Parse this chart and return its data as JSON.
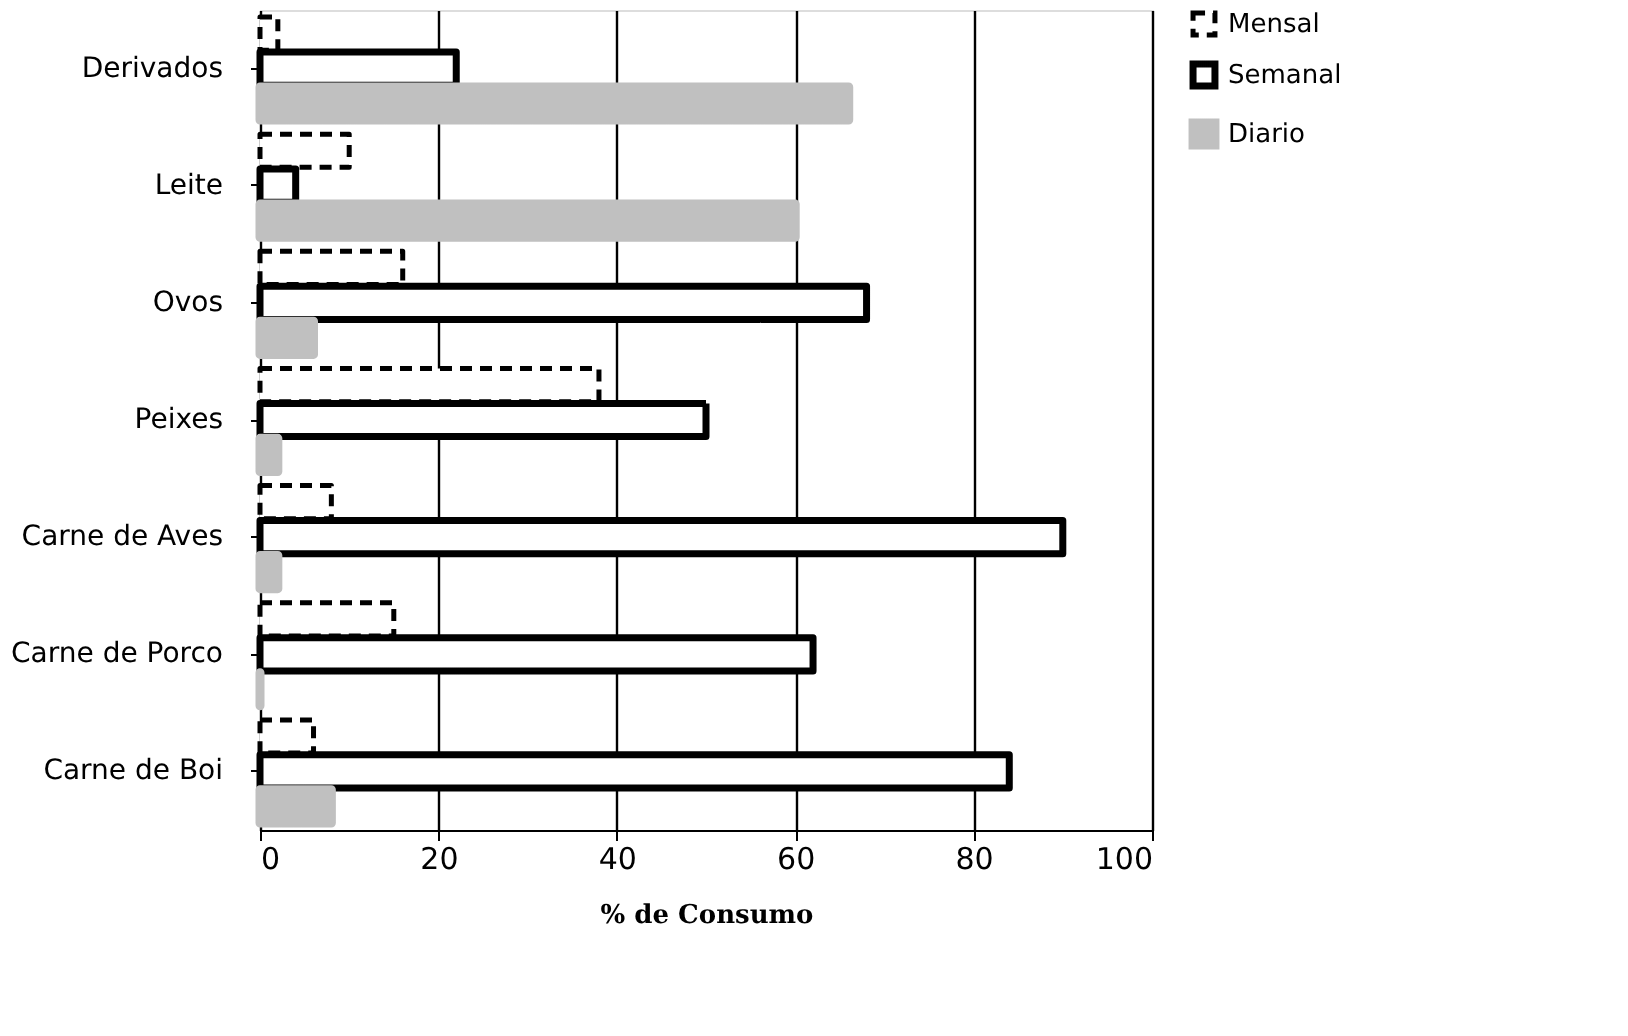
{
  "chart_data": {
    "type": "bar",
    "orientation": "horizontal",
    "xlabel": "% de Consumo",
    "categories": [
      "Derivados",
      "Leite",
      "Ovos",
      "Peixes",
      "Carne de Aves",
      "Carne de Porco",
      "Carne de Boi"
    ],
    "series": [
      {
        "name": "Mensal",
        "color": "#000000",
        "line_style": "dashed",
        "values": [
          2,
          10,
          16,
          38,
          8,
          15,
          6
        ]
      },
      {
        "name": "Semanal",
        "color": "#000000",
        "line_style": "solid",
        "values": [
          22,
          4,
          68,
          50,
          90,
          62,
          84
        ]
      },
      {
        "name": "Diario",
        "color": "#c0c0c0",
        "values": [
          66,
          60,
          6,
          2,
          2,
          0,
          8
        ]
      }
    ],
    "xlim": [
      0,
      100
    ],
    "xticks": [
      0,
      20,
      40,
      60,
      80,
      100
    ],
    "grid": "x",
    "legend": "top right"
  }
}
